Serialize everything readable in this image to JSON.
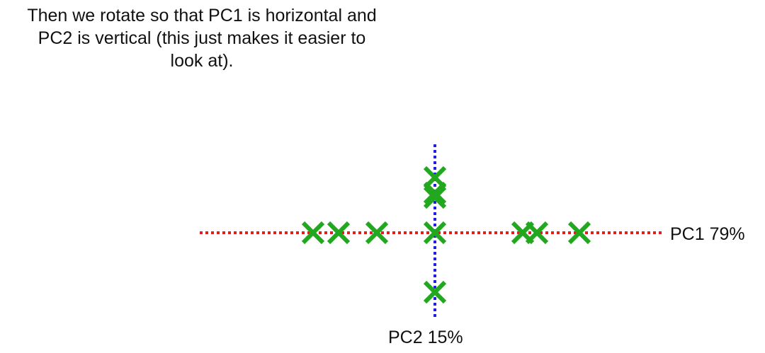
{
  "caption": {
    "lines": [
      "Then we rotate so that PC1 is horizontal and",
      "PC2 is vertical (this just makes it easier to",
      "look at)."
    ]
  },
  "axes": {
    "pc1": {
      "label": "PC1 79%",
      "color": "#e02020",
      "orientation": "horizontal",
      "style": "dotted"
    },
    "pc2": {
      "label": "PC2 15%",
      "color": "#1f1fe0",
      "orientation": "vertical",
      "style": "dotted"
    }
  },
  "points": {
    "marker": "X",
    "color": "#22a81e",
    "coords": [
      {
        "pc1": -1.72,
        "pc2": 0.0
      },
      {
        "pc1": -1.36,
        "pc2": 0.0
      },
      {
        "pc1": -0.82,
        "pc2": 0.0
      },
      {
        "pc1": 0.0,
        "pc2": 0.0
      },
      {
        "pc1": 0.0,
        "pc2": 0.78
      },
      {
        "pc1": 0.0,
        "pc2": 0.56
      },
      {
        "pc1": 0.0,
        "pc2": 0.5
      },
      {
        "pc1": 0.0,
        "pc2": -0.84
      },
      {
        "pc1": 1.24,
        "pc2": 0.0
      },
      {
        "pc1": 1.44,
        "pc2": 0.0
      },
      {
        "pc1": 2.04,
        "pc2": 0.0
      }
    ]
  }
}
